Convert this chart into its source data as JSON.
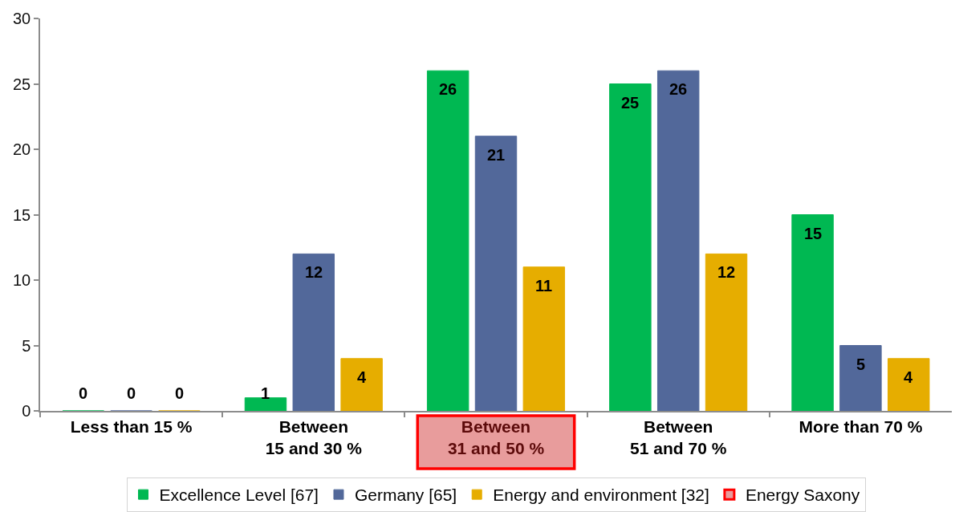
{
  "chart_data": {
    "type": "bar",
    "categories": [
      "Less than 15 %",
      "Between\n15 and 30 %",
      "Between\n31 and 50 %",
      "Between\n51 and 70 %",
      "More than 70 %"
    ],
    "series": [
      {
        "name": "Excellence Level [67]",
        "color": "#00b852",
        "values": [
          0,
          1,
          26,
          25,
          15
        ]
      },
      {
        "name": "Germany [65]",
        "color": "#52689a",
        "values": [
          0,
          12,
          21,
          26,
          5
        ]
      },
      {
        "name": "Energy and environment [32]",
        "color": "#e6ad00",
        "values": [
          0,
          4,
          11,
          12,
          4
        ]
      }
    ],
    "ylim": [
      0,
      30
    ],
    "yticks": [
      0,
      5,
      10,
      15,
      20,
      25,
      30
    ],
    "data_labels": true,
    "legend": "bottom",
    "annotations": [
      "Energy Saxony"
    ]
  }
}
